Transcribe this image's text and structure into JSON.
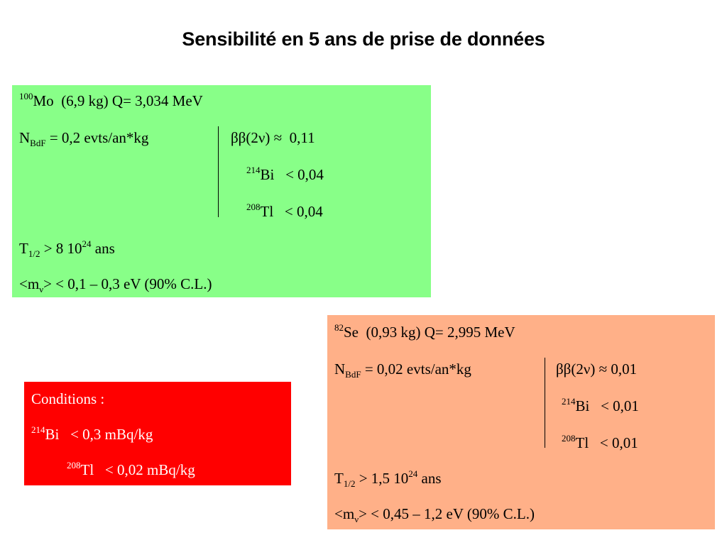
{
  "title": "Sensibilité en 5 ans de prise de données",
  "colors": {
    "mo_box": "#88ff88",
    "se_box": "#ffb088",
    "conditions_box": "#ff0000",
    "conditions_text": "#ffffff"
  },
  "mo": {
    "isotope_mass": "100",
    "isotope_symbol": "Mo",
    "isotope_info": "(6,9 kg)  Q= 3,034 MeV",
    "bdf_prefix": "N",
    "bdf_sub": "BdF",
    "bdf_value": " = 0,2 evts/an*kg",
    "bb2nu_label": "ββ(2ν) ≈ ",
    "bb2nu_value": "0,11",
    "bi_mass": "214",
    "bi_symbol": "Bi",
    "bi_value": "< 0,04",
    "tl_mass": "208",
    "tl_symbol": "Tl",
    "tl_value": "< 0,04",
    "thalf_prefix": "T",
    "thalf_sub": "1/2",
    "thalf_value": " > 8 10",
    "thalf_exp": "24",
    "thalf_unit": " ans",
    "mnu_prefix": "<m",
    "mnu_sub": "ν",
    "mnu_value": ">  < 0,1 – 0,3 eV  (90% C.L.)"
  },
  "se": {
    "isotope_mass": "82",
    "isotope_symbol": "Se",
    "isotope_info": "(0,93 kg)  Q= 2,995 MeV",
    "bdf_prefix": "N",
    "bdf_sub": "BdF",
    "bdf_value": " = 0,02 evts/an*kg",
    "bb2nu_label": "ββ(2ν) ≈ ",
    "bb2nu_value": "0,01",
    "bi_mass": "214",
    "bi_symbol": "Bi",
    "bi_value": "< 0,01",
    "tl_mass": "208",
    "tl_symbol": "Tl",
    "tl_value": "< 0,01",
    "thalf_prefix": "T",
    "thalf_sub": "1/2",
    "thalf_value": " > 1,5 10",
    "thalf_exp": "24",
    "thalf_unit": " ans",
    "mnu_prefix": "<m",
    "mnu_sub": "ν",
    "mnu_value": ">  < 0,45 – 1,2 eV  (90% C.L.)"
  },
  "conditions": {
    "heading": "Conditions :",
    "bi_mass": "214",
    "bi_symbol": "Bi",
    "bi_value": "< 0,3   mBq/kg",
    "tl_mass": "208",
    "tl_symbol": "Tl",
    "tl_value": "< 0,02 mBq/kg"
  }
}
